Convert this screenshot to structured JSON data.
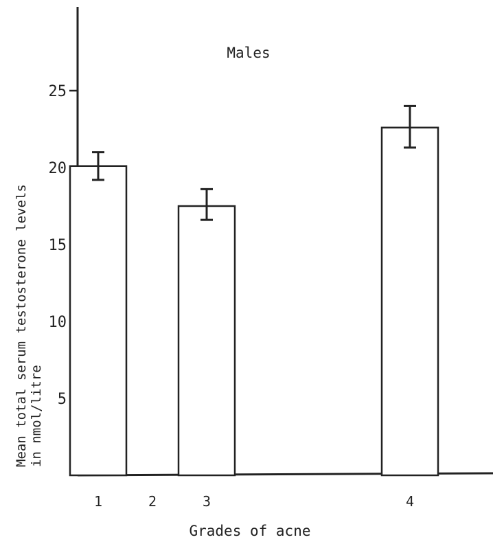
{
  "chart_data": {
    "type": "bar",
    "title": "Males",
    "xlabel": "Grades of acne",
    "ylabel_line1": "Mean total serum testosterone levels",
    "ylabel_line2": "in nmol/litre",
    "categories": [
      "1",
      "2",
      "3",
      "4"
    ],
    "values": [
      20.1,
      null,
      17.5,
      22.6
    ],
    "error_bars": [
      [
        19.2,
        21.0
      ],
      null,
      [
        16.6,
        18.6
      ],
      [
        21.3,
        24.0
      ]
    ],
    "yticks": [
      5,
      10,
      15,
      20,
      25
    ],
    "ylim": [
      0,
      30
    ],
    "grid": false,
    "legend": "none",
    "colors": {
      "bar_fill": "#ffffff",
      "bar_stroke": "#222222",
      "axis": "#222222",
      "background": "#ffffff"
    }
  }
}
